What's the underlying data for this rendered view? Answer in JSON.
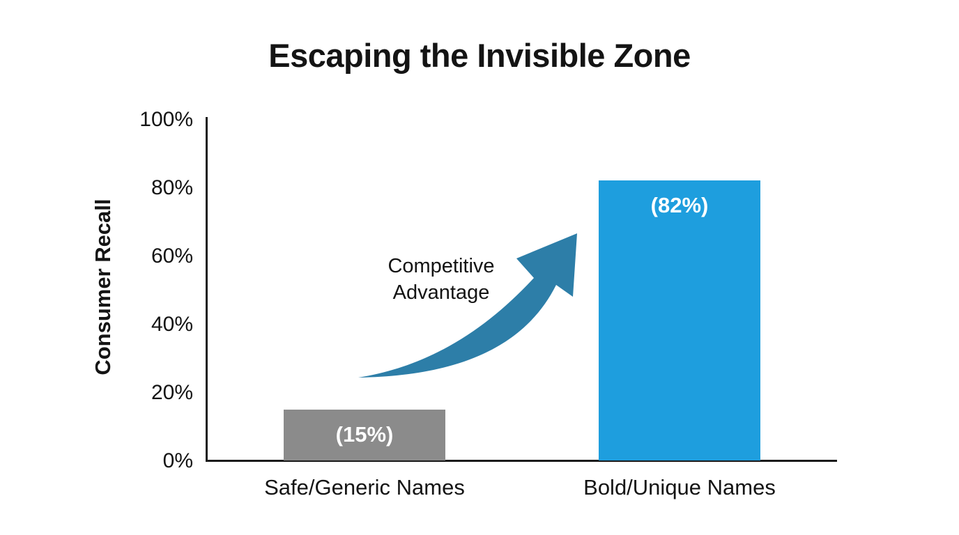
{
  "chart_data": {
    "type": "bar",
    "title": "Escaping the Invisible Zone",
    "ylabel": "Consumer Recall",
    "xlabel": "",
    "categories": [
      "Safe/Generic Names",
      "Bold/Unique Names"
    ],
    "values": [
      15,
      82
    ],
    "value_labels": [
      "(15%)",
      "(82%)"
    ],
    "bar_colors": [
      "#8b8b8b",
      "#1e9ede"
    ],
    "ylim": [
      0,
      100
    ],
    "yticks": [
      {
        "label": "100%",
        "value": 100
      },
      {
        "label": "80%",
        "value": 80
      },
      {
        "label": "60%",
        "value": 60
      },
      {
        "label": "40%",
        "value": 40
      },
      {
        "label": "20%",
        "value": 20
      },
      {
        "label": "0%",
        "value": 0
      }
    ],
    "grid": false,
    "legend": "none",
    "annotation": {
      "line1": "Competitive",
      "line2": "Advantage",
      "arrow_color": "#2d7ea8"
    },
    "text_color": "#141414",
    "axis_color": "#1a1a1a",
    "background_color": "#ffffff"
  }
}
